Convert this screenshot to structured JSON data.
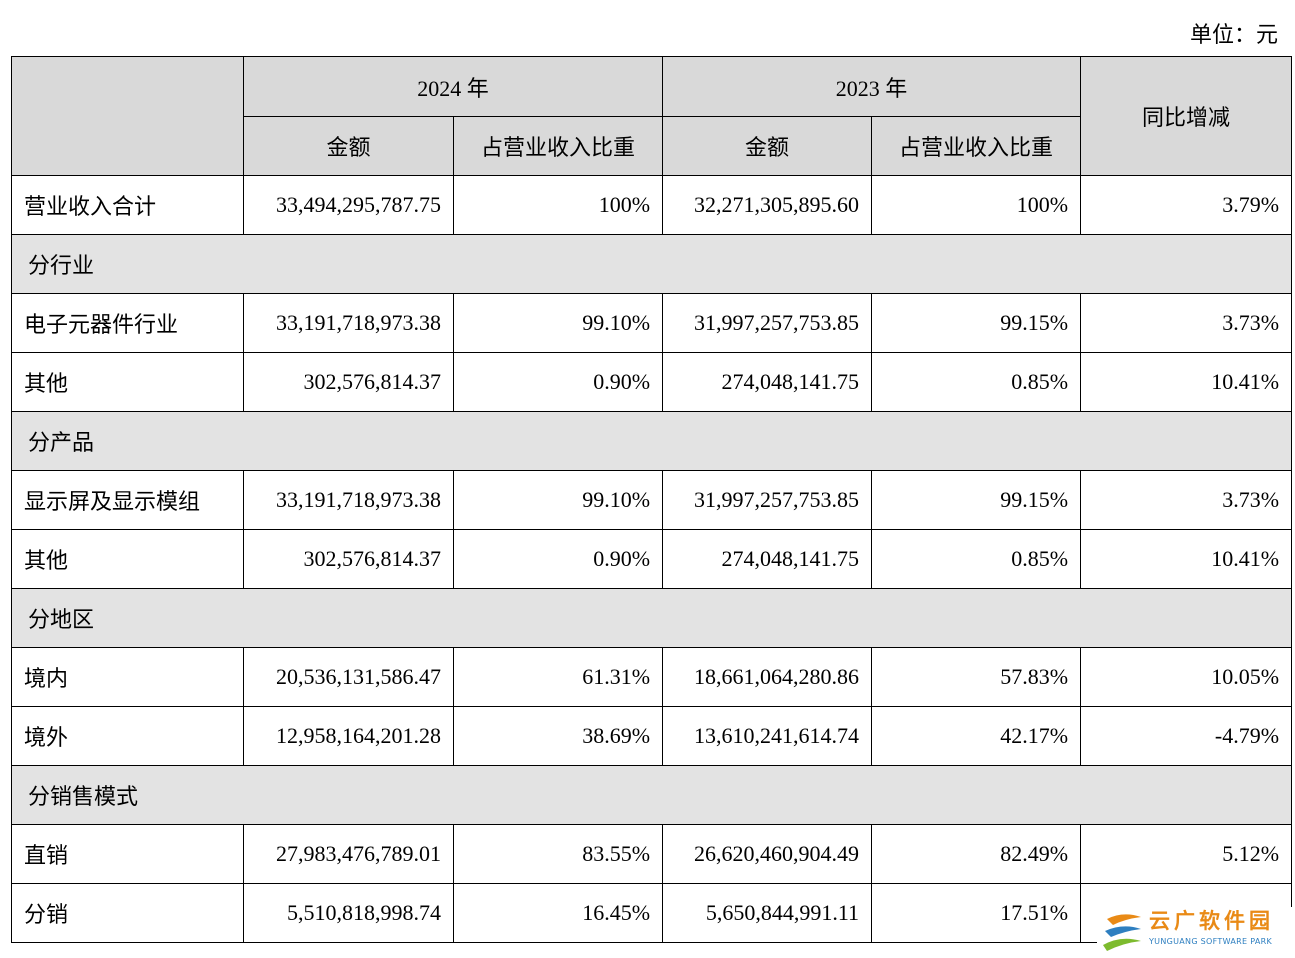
{
  "unit": "单位：元",
  "headers": {
    "year_2024": "2024 年",
    "year_2023": "2023 年",
    "amount": "金额",
    "ratio": "占营业收入比重",
    "yoy": "同比增减"
  },
  "rows": [
    {
      "type": "data",
      "label": "营业收入合计",
      "amount_2024": "33,494,295,787.75",
      "ratio_2024": "100%",
      "amount_2023": "32,271,305,895.60",
      "ratio_2023": "100%",
      "yoy": "3.79%"
    },
    {
      "type": "section",
      "label": "分行业"
    },
    {
      "type": "data",
      "label": "电子元器件行业",
      "amount_2024": "33,191,718,973.38",
      "ratio_2024": "99.10%",
      "amount_2023": "31,997,257,753.85",
      "ratio_2023": "99.15%",
      "yoy": "3.73%"
    },
    {
      "type": "data",
      "label": "其他",
      "amount_2024": "302,576,814.37",
      "ratio_2024": "0.90%",
      "amount_2023": "274,048,141.75",
      "ratio_2023": "0.85%",
      "yoy": "10.41%"
    },
    {
      "type": "section",
      "label": "分产品"
    },
    {
      "type": "data",
      "label": "显示屏及显示模组",
      "amount_2024": "33,191,718,973.38",
      "ratio_2024": "99.10%",
      "amount_2023": "31,997,257,753.85",
      "ratio_2023": "99.15%",
      "yoy": "3.73%"
    },
    {
      "type": "data",
      "label": "其他",
      "amount_2024": "302,576,814.37",
      "ratio_2024": "0.90%",
      "amount_2023": "274,048,141.75",
      "ratio_2023": "0.85%",
      "yoy": "10.41%"
    },
    {
      "type": "section",
      "label": "分地区"
    },
    {
      "type": "data",
      "label": "境内",
      "amount_2024": "20,536,131,586.47",
      "ratio_2024": "61.31%",
      "amount_2023": "18,661,064,280.86",
      "ratio_2023": "57.83%",
      "yoy": "10.05%"
    },
    {
      "type": "data",
      "label": "境外",
      "amount_2024": "12,958,164,201.28",
      "ratio_2024": "38.69%",
      "amount_2023": "13,610,241,614.74",
      "ratio_2023": "42.17%",
      "yoy": "-4.79%"
    },
    {
      "type": "section",
      "label": "分销售模式"
    },
    {
      "type": "data",
      "label": "直销",
      "amount_2024": "27,983,476,789.01",
      "ratio_2024": "83.55%",
      "amount_2023": "26,620,460,904.49",
      "ratio_2023": "82.49%",
      "yoy": "5.12%"
    },
    {
      "type": "data",
      "label": "分销",
      "amount_2024": "5,510,818,998.74",
      "ratio_2024": "16.45%",
      "amount_2023": "5,650,844,991.11",
      "ratio_2023": "17.51%",
      "yoy": ""
    }
  ],
  "watermark": {
    "text": "云广软件园",
    "subtext": "YUNGUANG SOFTWARE PARK",
    "icon": "yunguang-logo-icon",
    "colors": {
      "orange": "#e98a16",
      "blue": "#2e7fc0",
      "green": "#7dbb2e"
    }
  },
  "colors": {
    "header_bg": "#d9d9d9",
    "section_bg": "#e3e3e3",
    "border": "#000000"
  }
}
